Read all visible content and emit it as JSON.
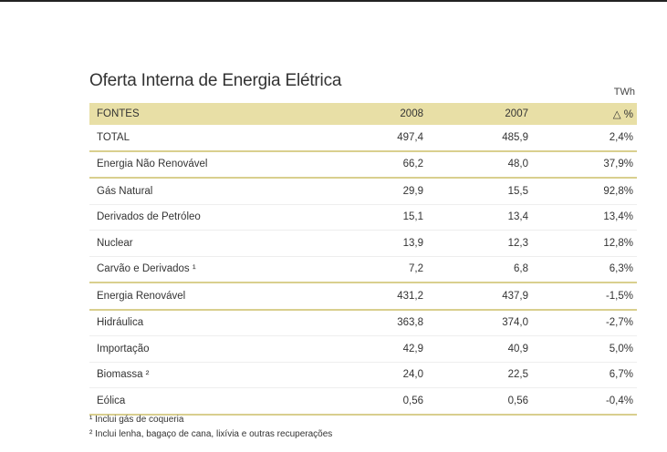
{
  "title": "Oferta Interna de Energia Elétrica",
  "unit": "TWh",
  "header": [
    "FONTES",
    "2008",
    "2007",
    "△ %"
  ],
  "rows": [
    [
      "TOTAL",
      "497,4",
      "485,9",
      "2,4%"
    ],
    [
      "Energia Não Renovável",
      "66,2",
      "48,0",
      "37,9%"
    ],
    [
      "Gás Natural",
      "29,9",
      "15,5",
      "92,8%"
    ],
    [
      "Derivados de Petróleo",
      "15,1",
      "13,4",
      "13,4%"
    ],
    [
      "Nuclear",
      "13,9",
      "12,3",
      "12,8%"
    ],
    [
      "Carvão e Derivados ¹",
      "7,2",
      "6,8",
      "6,3%"
    ],
    [
      "Energia Renovável",
      "431,2",
      "437,9",
      "-1,5%"
    ],
    [
      "Hidráulica",
      "363,8",
      "374,0",
      "-2,7%"
    ],
    [
      "Importação",
      "42,9",
      "40,9",
      "5,0%"
    ],
    [
      "Biomassa ²",
      "24,0",
      "22,5",
      "6,7%"
    ],
    [
      "Eólica",
      "0,56",
      "0,56",
      "-0,4%"
    ]
  ],
  "footnotes": [
    "¹ Inclui gás de coqueria",
    "² Inclui lenha, bagaço de cana, lixívia e outras recuperações"
  ]
}
